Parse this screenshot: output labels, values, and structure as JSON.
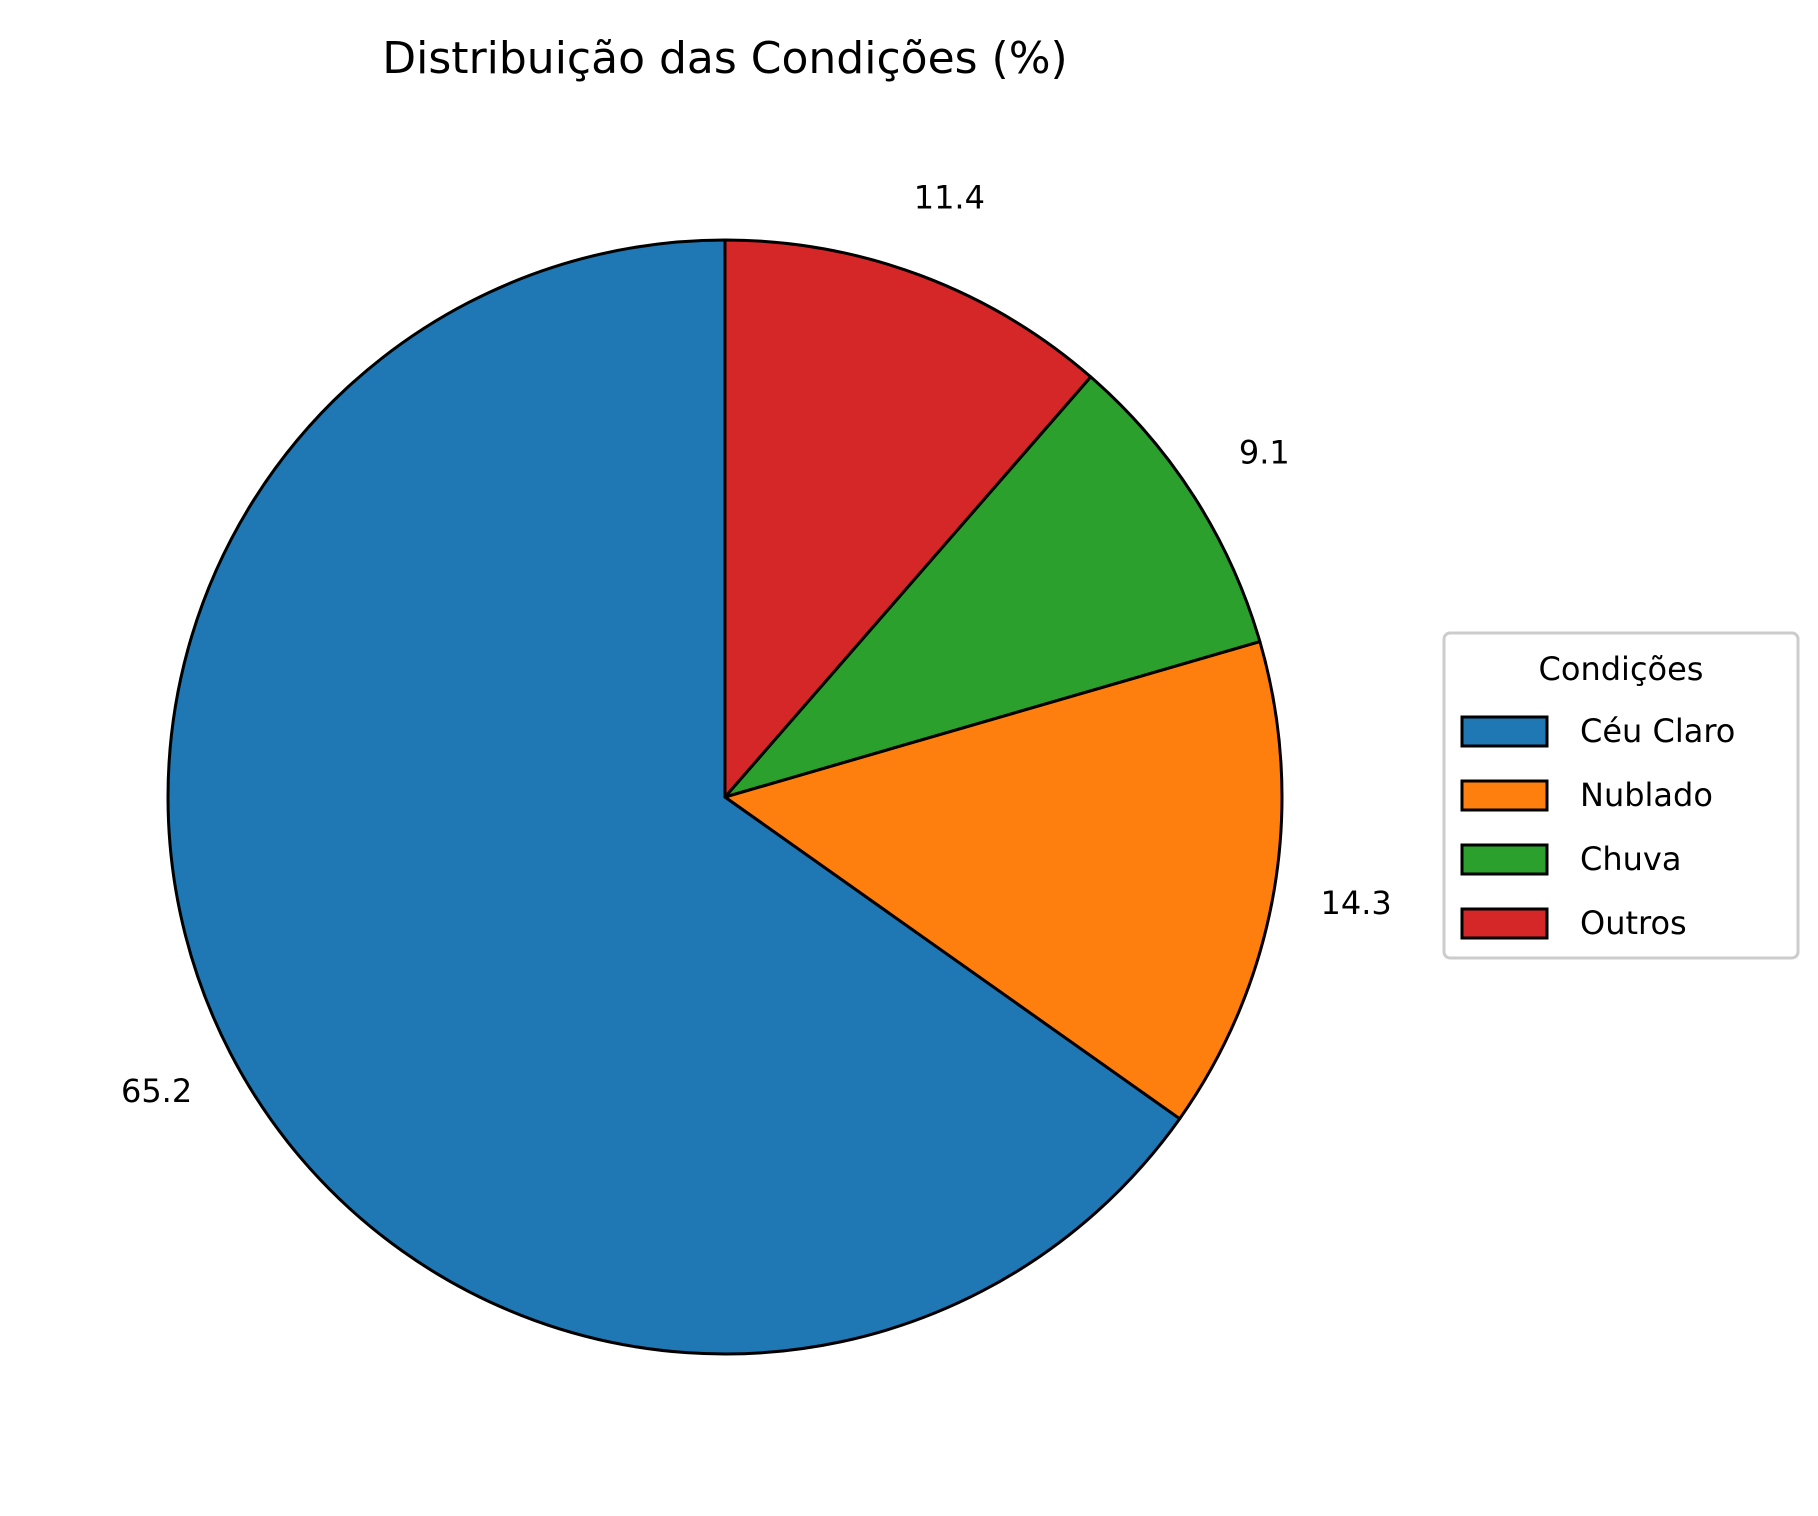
{
  "chart_data": {
    "type": "pie",
    "title": "Distribuição das Condições (%)",
    "categories": [
      "Céu Claro",
      "Nublado",
      "Chuva",
      "Outros"
    ],
    "values": [
      65.2,
      14.3,
      9.1,
      11.4
    ],
    "value_labels": [
      "65.2",
      "14.3",
      "9.1",
      "11.4"
    ],
    "colors": [
      "#1f77b4",
      "#ff7f0e",
      "#2ca02c",
      "#d62728"
    ],
    "start_angle_deg": 90,
    "direction": "counterclockwise",
    "legend": {
      "title": "Condições",
      "placement": "center-right"
    }
  }
}
